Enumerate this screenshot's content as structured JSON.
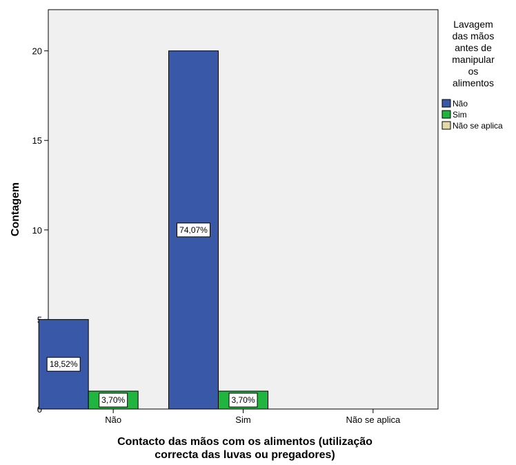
{
  "chart_data": {
    "type": "bar",
    "categories": [
      "Não",
      "Sim",
      "Não se aplica"
    ],
    "series": [
      {
        "name": "Não",
        "color": "#3A58A8",
        "values": [
          5,
          20,
          0
        ],
        "labels": [
          "18,52%",
          "74,07%",
          ""
        ]
      },
      {
        "name": "Sim",
        "color": "#1FB53F",
        "values": [
          1,
          1,
          0
        ],
        "labels": [
          "3,70%",
          "3,70%",
          ""
        ]
      },
      {
        "name": "Não se aplica",
        "color": "#E3DAA8",
        "values": [
          0,
          0,
          0
        ],
        "labels": [
          "",
          "",
          ""
        ]
      }
    ],
    "ylabel": "Contagem",
    "xlabel_lines": [
      "Contacto das mãos com os alimentos (utilização",
      "correcta das luvas ou pregadores)"
    ],
    "legend_title_lines": [
      "Lavagem",
      "das mãos",
      "antes de",
      "manipular",
      "os",
      "alimentos"
    ],
    "yticks": [
      0,
      5,
      10,
      15,
      20
    ],
    "ylim": [
      0,
      22.3
    ],
    "grid": false,
    "legend_position": "right",
    "plot_background": "#F0F0F0"
  }
}
